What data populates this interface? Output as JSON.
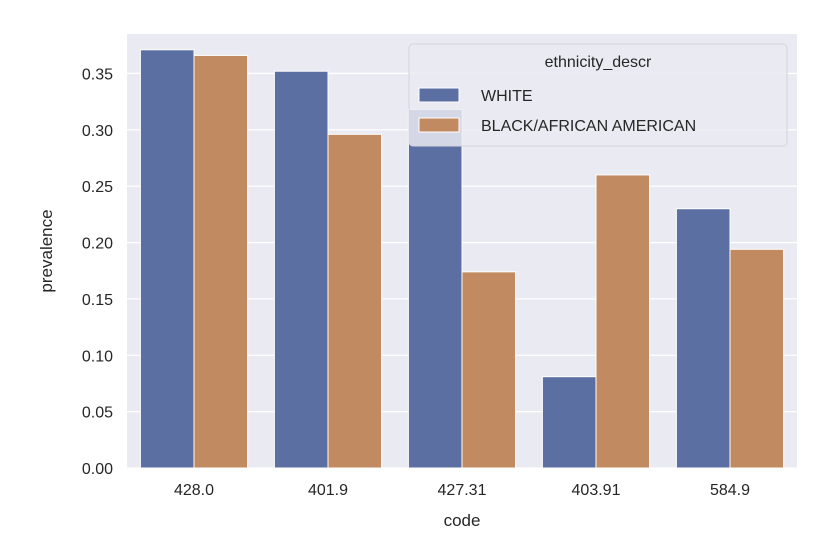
{
  "chart_data": {
    "type": "bar",
    "xlabel": "code",
    "ylabel": "prevalence",
    "categories": [
      "428.0",
      "401.9",
      "427.31",
      "403.91",
      "584.9"
    ],
    "series": [
      {
        "name": "WHITE",
        "color": "#5b6fa3",
        "values": [
          0.371,
          0.352,
          0.318,
          0.081,
          0.23
        ]
      },
      {
        "name": "BLACK/AFRICAN AMERICAN",
        "color": "#c18a60",
        "values": [
          0.366,
          0.296,
          0.174,
          0.26,
          0.194
        ]
      }
    ],
    "ylim": [
      0,
      0.385
    ],
    "yticks": [
      0.0,
      0.05,
      0.1,
      0.15,
      0.2,
      0.25,
      0.3,
      0.35
    ],
    "ytick_labels": [
      "0.00",
      "0.05",
      "0.10",
      "0.15",
      "0.20",
      "0.25",
      "0.30",
      "0.35"
    ],
    "grid": true,
    "legend": {
      "title": "ethnicity_descr",
      "placement": "top-right"
    },
    "plot_background": "#eaeaf2"
  }
}
